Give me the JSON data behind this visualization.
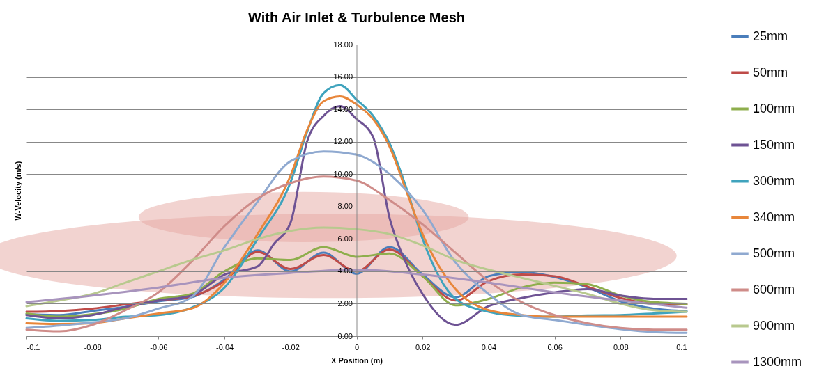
{
  "chart_data": {
    "type": "line",
    "title": "With Air Inlet & Turbulence Mesh",
    "xlabel": "X Position (m)",
    "ylabel": "W-Velocity (m/s)",
    "x": [
      -0.1,
      -0.09,
      -0.08,
      -0.07,
      -0.06,
      -0.05,
      -0.04,
      -0.03,
      -0.02,
      -0.01,
      0,
      0.01,
      0.02,
      0.03,
      0.04,
      0.05,
      0.06,
      0.07,
      0.08,
      0.09,
      0.1
    ],
    "series": [
      {
        "name": "25mm",
        "color": "#4a7ebb",
        "values": [
          1.35,
          1.3,
          1.55,
          1.8,
          2.15,
          2.4,
          3.5,
          5.3,
          4.0,
          5.15,
          3.85,
          5.5,
          3.8,
          2.4,
          3.7,
          3.95,
          3.65,
          3.0,
          2.15,
          1.7,
          1.55
        ]
      },
      {
        "name": "50mm",
        "color": "#be4b48",
        "values": [
          1.5,
          1.55,
          1.7,
          1.95,
          2.2,
          2.45,
          3.4,
          5.2,
          4.15,
          5.0,
          4.0,
          5.35,
          3.7,
          2.2,
          3.4,
          3.8,
          3.7,
          3.05,
          2.35,
          2.0,
          1.95
        ]
      },
      {
        "name": "100mm",
        "color": "#8eae4c",
        "values": [
          1.4,
          1.2,
          1.35,
          1.7,
          2.3,
          2.6,
          4.0,
          4.8,
          4.7,
          5.5,
          4.9,
          5.1,
          3.7,
          1.9,
          2.3,
          3.0,
          3.3,
          3.2,
          2.5,
          2.1,
          2.0
        ]
      },
      {
        "name": "150mm",
        "color": "#6e5394",
        "x": [
          -0.1,
          -0.09,
          -0.08,
          -0.07,
          -0.06,
          -0.05,
          -0.04,
          -0.03,
          -0.025,
          -0.02,
          -0.015,
          -0.01,
          -0.005,
          0,
          0.005,
          0.01,
          0.015,
          0.02,
          0.03,
          0.04,
          0.05,
          0.06,
          0.07,
          0.08,
          0.09,
          0.1
        ],
        "values": [
          1.3,
          1.1,
          1.3,
          1.8,
          2.2,
          2.5,
          3.8,
          4.3,
          5.7,
          7.0,
          12.0,
          13.6,
          14.2,
          13.4,
          12.3,
          7.3,
          4.5,
          2.6,
          0.7,
          1.85,
          2.35,
          2.7,
          2.9,
          2.5,
          2.3,
          2.3
        ]
      },
      {
        "name": "300mm",
        "color": "#3fa3bd",
        "x": [
          -0.1,
          -0.09,
          -0.08,
          -0.07,
          -0.06,
          -0.05,
          -0.04,
          -0.03,
          -0.02,
          -0.015,
          -0.01,
          -0.005,
          0,
          0.005,
          0.01,
          0.015,
          0.02,
          0.03,
          0.04,
          0.05,
          0.06,
          0.07,
          0.08,
          0.09,
          0.1
        ],
        "values": [
          1.1,
          0.95,
          1.0,
          1.2,
          1.3,
          1.75,
          3.0,
          6.0,
          9.5,
          12.6,
          15.0,
          15.5,
          14.6,
          13.6,
          11.9,
          9.2,
          6.0,
          2.3,
          1.5,
          1.25,
          1.2,
          1.28,
          1.3,
          1.4,
          1.5
        ]
      },
      {
        "name": "340mm",
        "color": "#e8863a",
        "x": [
          -0.1,
          -0.09,
          -0.08,
          -0.07,
          -0.06,
          -0.05,
          -0.04,
          -0.03,
          -0.02,
          -0.015,
          -0.01,
          -0.005,
          0,
          0.005,
          0.01,
          0.015,
          0.02,
          0.03,
          0.04,
          0.05,
          0.06,
          0.07,
          0.08,
          0.09,
          0.1
        ],
        "values": [
          0.8,
          0.75,
          0.8,
          1.1,
          1.4,
          1.7,
          3.3,
          6.3,
          9.9,
          12.7,
          14.5,
          14.8,
          14.3,
          13.4,
          11.7,
          9.0,
          6.3,
          2.9,
          1.6,
          1.3,
          1.2,
          1.2,
          1.2,
          1.2,
          1.2
        ]
      },
      {
        "name": "500mm",
        "color": "#8fa9d0",
        "values": [
          0.5,
          0.65,
          0.85,
          1.1,
          1.7,
          2.4,
          5.5,
          8.3,
          10.8,
          11.4,
          11.2,
          10.0,
          7.8,
          4.55,
          2.6,
          1.3,
          1.0,
          0.7,
          0.43,
          0.25,
          0.2
        ]
      },
      {
        "name": "600mm",
        "color": "#cf8c89",
        "values": [
          0.4,
          0.3,
          0.7,
          1.6,
          2.7,
          4.6,
          6.8,
          8.5,
          9.45,
          9.85,
          9.6,
          8.4,
          6.9,
          5.15,
          3.4,
          2.1,
          1.3,
          0.8,
          0.5,
          0.4,
          0.4
        ]
      },
      {
        "name": "900mm",
        "color": "#b8c98e",
        "values": [
          1.85,
          2.2,
          2.6,
          3.3,
          4.0,
          4.7,
          5.3,
          6.0,
          6.5,
          6.7,
          6.6,
          6.3,
          5.6,
          4.7,
          4.1,
          3.6,
          3.1,
          2.6,
          2.0,
          1.6,
          1.5
        ]
      },
      {
        "name": "1300mm",
        "color": "#a894bd",
        "x": [
          -0.1,
          -0.08,
          -0.06,
          -0.04,
          -0.02,
          0,
          0.02,
          0.04,
          0.06,
          0.08,
          0.1
        ],
        "values": [
          2.1,
          2.5,
          3.0,
          3.6,
          3.9,
          4.1,
          3.8,
          3.3,
          2.7,
          2.2,
          1.75
        ]
      }
    ],
    "xlim": [
      -0.1,
      0.1
    ],
    "xticks": [
      -0.1,
      -0.08,
      -0.06,
      -0.04,
      -0.02,
      0,
      0.02,
      0.04,
      0.06,
      0.08,
      0.1
    ],
    "ylim": [
      0,
      18
    ],
    "yticks": [
      {
        "value": 0,
        "label": "0.00"
      },
      {
        "value": 2,
        "label": "2.00"
      },
      {
        "value": 4,
        "label": "4.00"
      },
      {
        "value": 6,
        "label": "6.00"
      },
      {
        "value": 8,
        "label": "8.00"
      },
      {
        "value": 10,
        "label": "10.00"
      },
      {
        "value": 12,
        "label": "12.00"
      },
      {
        "value": 14,
        "label": "14.00"
      },
      {
        "value": 16,
        "label": "16.00"
      },
      {
        "value": 18,
        "label": "18.00"
      }
    ],
    "grid": "y",
    "legend": "right"
  }
}
